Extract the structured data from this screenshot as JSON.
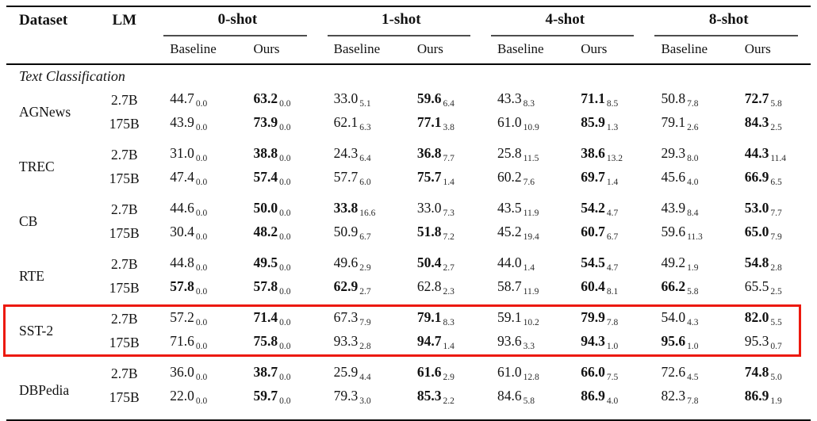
{
  "colors": {
    "highlight_box": "#ec190e",
    "rule": "#000000",
    "text": "#121212"
  },
  "table": {
    "header_dataset": "Dataset",
    "header_lm": "LM",
    "shot_groups": [
      "0-shot",
      "1-shot",
      "4-shot",
      "8-shot"
    ],
    "subheaders": [
      "Baseline",
      "Ours"
    ],
    "section_label": "Text Classification",
    "datasets": [
      {
        "name": "AGNews",
        "highlighted": false,
        "rows": [
          {
            "lm": "2.7B",
            "cells": [
              [
                "44.7",
                "0.0",
                0
              ],
              [
                "63.2",
                "0.0",
                1
              ],
              [
                "33.0",
                "5.1",
                0
              ],
              [
                "59.6",
                "6.4",
                1
              ],
              [
                "43.3",
                "8.3",
                0
              ],
              [
                "71.1",
                "8.5",
                1
              ],
              [
                "50.8",
                "7.8",
                0
              ],
              [
                "72.7",
                "5.8",
                1
              ]
            ]
          },
          {
            "lm": "175B",
            "cells": [
              [
                "43.9",
                "0.0",
                0
              ],
              [
                "73.9",
                "0.0",
                1
              ],
              [
                "62.1",
                "6.3",
                0
              ],
              [
                "77.1",
                "3.8",
                1
              ],
              [
                "61.0",
                "10.9",
                0
              ],
              [
                "85.9",
                "1.3",
                1
              ],
              [
                "79.1",
                "2.6",
                0
              ],
              [
                "84.3",
                "2.5",
                1
              ]
            ]
          }
        ]
      },
      {
        "name": "TREC",
        "highlighted": false,
        "rows": [
          {
            "lm": "2.7B",
            "cells": [
              [
                "31.0",
                "0.0",
                0
              ],
              [
                "38.8",
                "0.0",
                1
              ],
              [
                "24.3",
                "6.4",
                0
              ],
              [
                "36.8",
                "7.7",
                1
              ],
              [
                "25.8",
                "11.5",
                0
              ],
              [
                "38.6",
                "13.2",
                1
              ],
              [
                "29.3",
                "8.0",
                0
              ],
              [
                "44.3",
                "11.4",
                1
              ]
            ]
          },
          {
            "lm": "175B",
            "cells": [
              [
                "47.4",
                "0.0",
                0
              ],
              [
                "57.4",
                "0.0",
                1
              ],
              [
                "57.7",
                "6.0",
                0
              ],
              [
                "75.7",
                "1.4",
                1
              ],
              [
                "60.2",
                "7.6",
                0
              ],
              [
                "69.7",
                "1.4",
                1
              ],
              [
                "45.6",
                "4.0",
                0
              ],
              [
                "66.9",
                "6.5",
                1
              ]
            ]
          }
        ]
      },
      {
        "name": "CB",
        "highlighted": false,
        "rows": [
          {
            "lm": "2.7B",
            "cells": [
              [
                "44.6",
                "0.0",
                0
              ],
              [
                "50.0",
                "0.0",
                1
              ],
              [
                "33.8",
                "16.6",
                1
              ],
              [
                "33.0",
                "7.3",
                0
              ],
              [
                "43.5",
                "11.9",
                0
              ],
              [
                "54.2",
                "4.7",
                1
              ],
              [
                "43.9",
                "8.4",
                0
              ],
              [
                "53.0",
                "7.7",
                1
              ]
            ]
          },
          {
            "lm": "175B",
            "cells": [
              [
                "30.4",
                "0.0",
                0
              ],
              [
                "48.2",
                "0.0",
                1
              ],
              [
                "50.9",
                "6.7",
                0
              ],
              [
                "51.8",
                "7.2",
                1
              ],
              [
                "45.2",
                "19.4",
                0
              ],
              [
                "60.7",
                "6.7",
                1
              ],
              [
                "59.6",
                "11.3",
                0
              ],
              [
                "65.0",
                "7.9",
                1
              ]
            ]
          }
        ]
      },
      {
        "name": "RTE",
        "highlighted": false,
        "rows": [
          {
            "lm": "2.7B",
            "cells": [
              [
                "44.8",
                "0.0",
                0
              ],
              [
                "49.5",
                "0.0",
                1
              ],
              [
                "49.6",
                "2.9",
                0
              ],
              [
                "50.4",
                "2.7",
                1
              ],
              [
                "44.0",
                "1.4",
                0
              ],
              [
                "54.5",
                "4.7",
                1
              ],
              [
                "49.2",
                "1.9",
                0
              ],
              [
                "54.8",
                "2.8",
                1
              ]
            ]
          },
          {
            "lm": "175B",
            "cells": [
              [
                "57.8",
                "0.0",
                1
              ],
              [
                "57.8",
                "0.0",
                1
              ],
              [
                "62.9",
                "2.7",
                1
              ],
              [
                "62.8",
                "2.3",
                0
              ],
              [
                "58.7",
                "11.9",
                0
              ],
              [
                "60.4",
                "8.1",
                1
              ],
              [
                "66.2",
                "5.8",
                1
              ],
              [
                "65.5",
                "2.5",
                0
              ]
            ]
          }
        ]
      },
      {
        "name": "SST-2",
        "highlighted": true,
        "rows": [
          {
            "lm": "2.7B",
            "cells": [
              [
                "57.2",
                "0.0",
                0
              ],
              [
                "71.4",
                "0.0",
                1
              ],
              [
                "67.3",
                "7.9",
                0
              ],
              [
                "79.1",
                "8.3",
                1
              ],
              [
                "59.1",
                "10.2",
                0
              ],
              [
                "79.9",
                "7.8",
                1
              ],
              [
                "54.0",
                "4.3",
                0
              ],
              [
                "82.0",
                "5.5",
                1
              ]
            ]
          },
          {
            "lm": "175B",
            "cells": [
              [
                "71.6",
                "0.0",
                0
              ],
              [
                "75.8",
                "0.0",
                1
              ],
              [
                "93.3",
                "2.8",
                0
              ],
              [
                "94.7",
                "1.4",
                1
              ],
              [
                "93.6",
                "3.3",
                0
              ],
              [
                "94.3",
                "1.0",
                1
              ],
              [
                "95.6",
                "1.0",
                1
              ],
              [
                "95.3",
                "0.7",
                0
              ]
            ]
          }
        ]
      },
      {
        "name": "DBPedia",
        "highlighted": false,
        "rows": [
          {
            "lm": "2.7B",
            "cells": [
              [
                "36.0",
                "0.0",
                0
              ],
              [
                "38.7",
                "0.0",
                1
              ],
              [
                "25.9",
                "4.4",
                0
              ],
              [
                "61.6",
                "2.9",
                1
              ],
              [
                "61.0",
                "12.8",
                0
              ],
              [
                "66.0",
                "7.5",
                1
              ],
              [
                "72.6",
                "4.5",
                0
              ],
              [
                "74.8",
                "5.0",
                1
              ]
            ]
          },
          {
            "lm": "175B",
            "cells": [
              [
                "22.0",
                "0.0",
                0
              ],
              [
                "59.7",
                "0.0",
                1
              ],
              [
                "79.3",
                "3.0",
                0
              ],
              [
                "85.3",
                "2.2",
                1
              ],
              [
                "84.6",
                "5.8",
                0
              ],
              [
                "86.9",
                "4.0",
                1
              ],
              [
                "82.3",
                "7.8",
                0
              ],
              [
                "86.9",
                "1.9",
                1
              ]
            ]
          }
        ]
      }
    ]
  }
}
